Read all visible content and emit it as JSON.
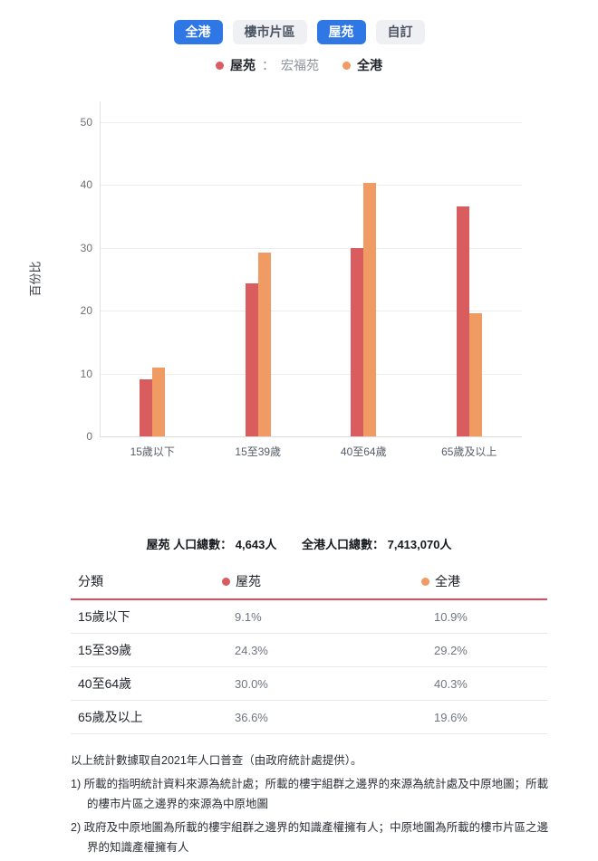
{
  "tabs": [
    {
      "label": "全港",
      "active": true
    },
    {
      "label": "樓市片區",
      "active": false
    },
    {
      "label": "屋苑",
      "active": true
    },
    {
      "label": "自訂",
      "active": false
    }
  ],
  "legend": {
    "estate_label": "屋苑",
    "estate_separator": "：",
    "estate_name": "宏福苑",
    "hk_label": "全港"
  },
  "chart_data": {
    "type": "bar",
    "title": "",
    "xlabel": "",
    "ylabel": "百份比",
    "categories": [
      "15歲以下",
      "15至39歲",
      "40至64歲",
      "65歲及以上"
    ],
    "series": [
      {
        "name": "屋苑",
        "color": "#d95c5e",
        "values": [
          9.1,
          24.3,
          30.0,
          36.6
        ]
      },
      {
        "name": "全港",
        "color": "#f09a64",
        "values": [
          10.9,
          29.2,
          40.3,
          19.6
        ]
      }
    ],
    "ylim": [
      0,
      52
    ],
    "yticks": [
      0,
      10,
      20,
      30,
      40,
      50
    ],
    "grid": true,
    "legend_position": "top"
  },
  "totals": {
    "estate": {
      "label": "屋苑 人口總數：",
      "value": "4,643人"
    },
    "hk": {
      "label": "全港人口總數：",
      "value": "7,413,070人"
    }
  },
  "table": {
    "headers": [
      "分類",
      "屋苑",
      "全港"
    ],
    "rows": [
      {
        "category": "15歲以下",
        "estate": "9.1%",
        "hk": "10.9%"
      },
      {
        "category": "15至39歲",
        "estate": "24.3%",
        "hk": "29.2%"
      },
      {
        "category": "40至64歲",
        "estate": "30.0%",
        "hk": "40.3%"
      },
      {
        "category": "65歲及以上",
        "estate": "36.6%",
        "hk": "19.6%"
      }
    ]
  },
  "footnotes": {
    "source": "以上統計數據取自2021年人口普查（由政府統計處提供）。",
    "note1": "1) 所載的指明統計資料來源為統計處；所載的樓宇組群之邊界的來源為統計處及中原地圖；所載的樓市片區之邊界的來源為中原地圖",
    "note2": "2) 政府及中原地圖為所載的樓宇組群之邊界的知識產權擁有人；中原地圖為所載的樓市片區之邊界的知識產權擁有人"
  }
}
